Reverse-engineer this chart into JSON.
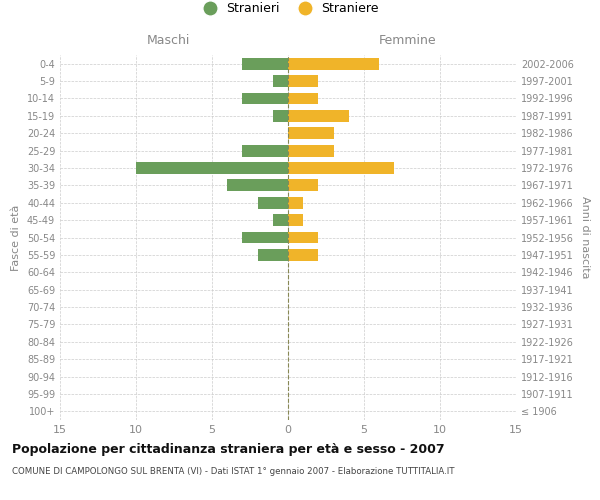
{
  "age_groups": [
    "100+",
    "95-99",
    "90-94",
    "85-89",
    "80-84",
    "75-79",
    "70-74",
    "65-69",
    "60-64",
    "55-59",
    "50-54",
    "45-49",
    "40-44",
    "35-39",
    "30-34",
    "25-29",
    "20-24",
    "15-19",
    "10-14",
    "5-9",
    "0-4"
  ],
  "birth_years": [
    "≤ 1906",
    "1907-1911",
    "1912-1916",
    "1917-1921",
    "1922-1926",
    "1927-1931",
    "1932-1936",
    "1937-1941",
    "1942-1946",
    "1947-1951",
    "1952-1956",
    "1957-1961",
    "1962-1966",
    "1967-1971",
    "1972-1976",
    "1977-1981",
    "1982-1986",
    "1987-1991",
    "1992-1996",
    "1997-2001",
    "2002-2006"
  ],
  "maschi": [
    0,
    0,
    0,
    0,
    0,
    0,
    0,
    0,
    0,
    2,
    3,
    1,
    2,
    4,
    10,
    3,
    0,
    1,
    3,
    1,
    3
  ],
  "femmine": [
    0,
    0,
    0,
    0,
    0,
    0,
    0,
    0,
    0,
    2,
    2,
    1,
    1,
    2,
    7,
    3,
    3,
    4,
    2,
    2,
    6
  ],
  "maschi_color": "#6a9e5b",
  "femmine_color": "#f0b429",
  "bg_color": "#ffffff",
  "grid_color": "#cccccc",
  "center_line_color": "#888855",
  "title": "Popolazione per cittadinanza straniera per età e sesso - 2007",
  "subtitle": "COMUNE DI CAMPOLONGO SUL BRENTA (VI) - Dati ISTAT 1° gennaio 2007 - Elaborazione TUTTITALIA.IT",
  "ylabel_left": "Fasce di età",
  "ylabel_right": "Anni di nascita",
  "xlabel_left": "Maschi",
  "xlabel_right": "Femmine",
  "legend_maschi": "Stranieri",
  "legend_femmine": "Straniere",
  "xlim": 15,
  "label_color": "#888888",
  "tick_color": "#888888"
}
